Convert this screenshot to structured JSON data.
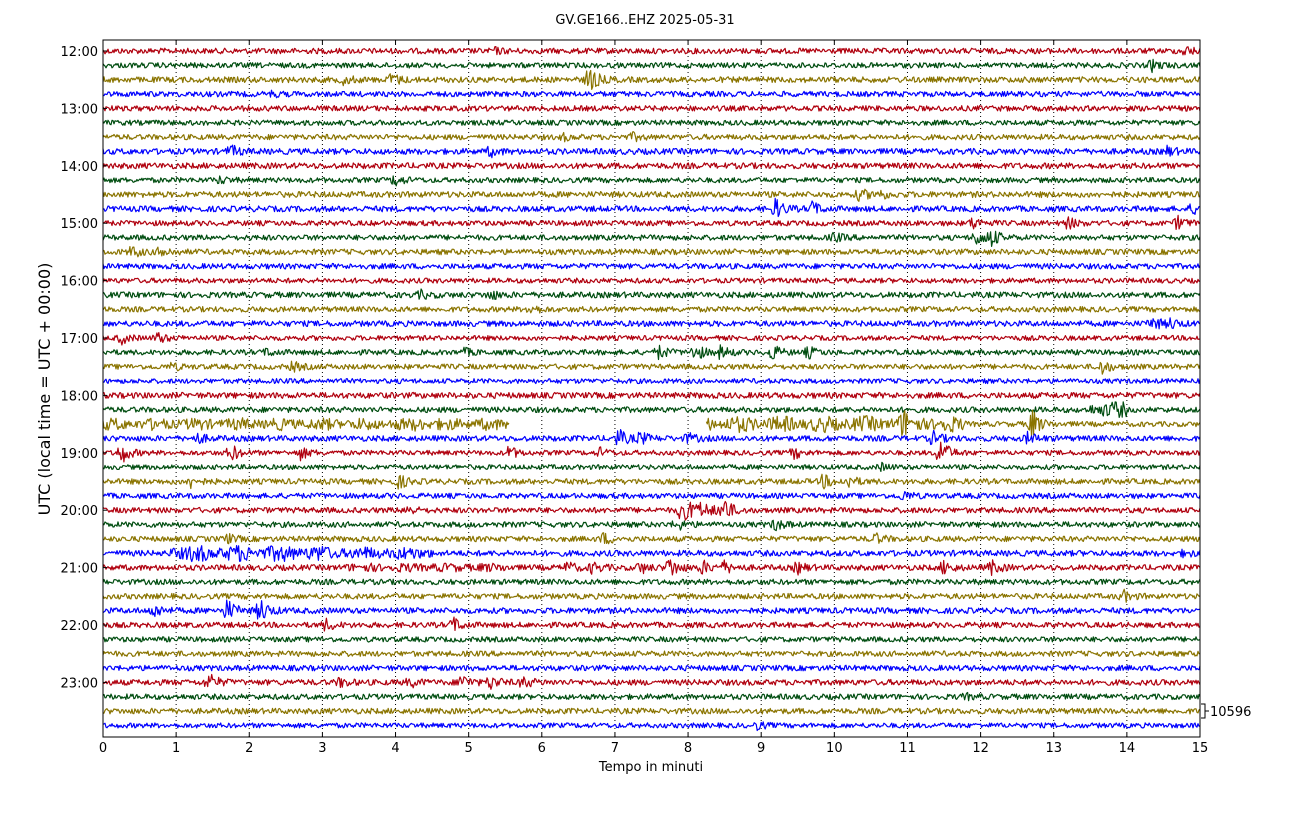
{
  "chart_data": {
    "type": "line",
    "title": "GV.GE166..EHZ 2025-05-31",
    "xlabel": "Tempo in minuti",
    "ylabel": "UTC (local time = UTC + 00:00)",
    "xlim": [
      0,
      15
    ],
    "x_ticks": [
      "0",
      "1",
      "2",
      "3",
      "4",
      "5",
      "6",
      "7",
      "8",
      "9",
      "10",
      "11",
      "12",
      "13",
      "14",
      "15"
    ],
    "y_ticks": [
      "12:00",
      "13:00",
      "14:00",
      "15:00",
      "16:00",
      "17:00",
      "18:00",
      "19:00",
      "20:00",
      "21:00",
      "22:00",
      "23:00"
    ],
    "row_start": "12:00",
    "row_minutes": 15,
    "row_count": 48,
    "grid": "vertical dotted",
    "scale_label": "10596",
    "colors": [
      "#b0000e",
      "#004d10",
      "#8a7400",
      "#0000ff"
    ],
    "events": [
      {
        "row": 0,
        "x": 5.35,
        "amp": 2.5
      },
      {
        "row": 0,
        "x": 14.8,
        "amp": 4
      },
      {
        "row": 1,
        "x": 14.35,
        "amp": 5
      },
      {
        "row": 2,
        "x": 3.3,
        "amp": 4
      },
      {
        "row": 2,
        "x": 3.95,
        "amp": 6
      },
      {
        "row": 2,
        "x": 6.65,
        "amp": 12
      },
      {
        "row": 3,
        "x": 2.3,
        "amp": 2
      },
      {
        "row": 6,
        "x": 6.3,
        "amp": 2.5
      },
      {
        "row": 6,
        "x": 7.25,
        "amp": 3
      },
      {
        "row": 7,
        "x": 1.75,
        "amp": 5
      },
      {
        "row": 7,
        "x": 5.3,
        "amp": 4
      },
      {
        "row": 7,
        "x": 14.55,
        "amp": 4
      },
      {
        "row": 9,
        "x": 1.6,
        "amp": 3
      },
      {
        "row": 9,
        "x": 4.0,
        "amp": 5
      },
      {
        "row": 10,
        "x": 10.35,
        "amp": 5
      },
      {
        "row": 10,
        "x": 10.6,
        "amp": 4
      },
      {
        "row": 11,
        "x": 9.2,
        "amp": 9
      },
      {
        "row": 11,
        "x": 9.7,
        "amp": 6
      },
      {
        "row": 11,
        "x": 14.9,
        "amp": 4
      },
      {
        "row": 12,
        "x": 11.9,
        "amp": 5
      },
      {
        "row": 12,
        "x": 13.2,
        "amp": 5
      },
      {
        "row": 12,
        "x": 14.7,
        "amp": 6
      },
      {
        "row": 13,
        "x": 10.0,
        "amp": 4
      },
      {
        "row": 13,
        "x": 11.95,
        "amp": 7
      },
      {
        "row": 13,
        "x": 12.15,
        "amp": 7
      },
      {
        "row": 14,
        "x": 0.4,
        "amp": 5
      },
      {
        "row": 14,
        "x": 0.8,
        "amp": 5
      },
      {
        "row": 17,
        "x": 4.35,
        "amp": 3
      },
      {
        "row": 17,
        "x": 5.3,
        "amp": 4
      },
      {
        "row": 18,
        "x": 5.85,
        "amp": 4
      },
      {
        "row": 19,
        "x": 14.35,
        "amp": 6
      },
      {
        "row": 19,
        "x": 14.6,
        "amp": 4
      },
      {
        "row": 20,
        "x": 0.25,
        "amp": 5
      },
      {
        "row": 20,
        "x": 0.75,
        "amp": 5
      },
      {
        "row": 21,
        "x": 2.25,
        "amp": 3
      },
      {
        "row": 21,
        "x": 4.95,
        "amp": 3
      },
      {
        "row": 21,
        "x": 7.6,
        "amp": 6
      },
      {
        "row": 21,
        "x": 8.1,
        "amp": 8
      },
      {
        "row": 21,
        "x": 8.45,
        "amp": 6
      },
      {
        "row": 21,
        "x": 9.15,
        "amp": 7
      },
      {
        "row": 21,
        "x": 9.65,
        "amp": 5
      },
      {
        "row": 22,
        "x": 0.95,
        "amp": 3
      },
      {
        "row": 22,
        "x": 2.6,
        "amp": 4
      },
      {
        "row": 22,
        "x": 13.65,
        "amp": 7
      },
      {
        "row": 26,
        "x": 4.3,
        "amp": 3
      },
      {
        "row": 26,
        "x": 10.95,
        "amp": 8
      },
      {
        "row": 26,
        "x": 12.7,
        "amp": 14
      },
      {
        "row": 27,
        "x": 1.3,
        "amp": 4
      },
      {
        "row": 27,
        "x": 7.05,
        "amp": 8
      },
      {
        "row": 27,
        "x": 7.35,
        "amp": 5
      },
      {
        "row": 27,
        "x": 8.0,
        "amp": 4
      },
      {
        "row": 27,
        "x": 11.35,
        "amp": 6
      },
      {
        "row": 27,
        "x": 12.65,
        "amp": 5
      },
      {
        "row": 28,
        "x": 0.25,
        "amp": 10
      },
      {
        "row": 28,
        "x": 1.75,
        "amp": 8
      },
      {
        "row": 28,
        "x": 2.7,
        "amp": 6
      },
      {
        "row": 28,
        "x": 5.55,
        "amp": 6
      },
      {
        "row": 28,
        "x": 6.8,
        "amp": 4
      },
      {
        "row": 28,
        "x": 9.45,
        "amp": 5
      },
      {
        "row": 28,
        "x": 11.45,
        "amp": 14
      },
      {
        "row": 29,
        "x": 10.65,
        "amp": 3
      },
      {
        "row": 30,
        "x": 1.2,
        "amp": 5
      },
      {
        "row": 30,
        "x": 4.05,
        "amp": 6
      },
      {
        "row": 30,
        "x": 9.85,
        "amp": 6
      },
      {
        "row": 30,
        "x": 10.2,
        "amp": 5
      },
      {
        "row": 31,
        "x": 10.95,
        "amp": 4
      },
      {
        "row": 32,
        "x": 4.15,
        "amp": 4
      },
      {
        "row": 32,
        "x": 7.9,
        "amp": 8
      },
      {
        "row": 32,
        "x": 8.5,
        "amp": 10
      },
      {
        "row": 33,
        "x": 7.85,
        "amp": 5
      },
      {
        "row": 33,
        "x": 9.2,
        "amp": 5
      },
      {
        "row": 34,
        "x": 1.7,
        "amp": 4
      },
      {
        "row": 34,
        "x": 6.85,
        "amp": 5
      },
      {
        "row": 34,
        "x": 10.55,
        "amp": 5
      },
      {
        "row": 35,
        "x": 14.8,
        "amp": 3
      },
      {
        "row": 36,
        "x": 6.35,
        "amp": 5
      },
      {
        "row": 36,
        "x": 6.7,
        "amp": 5
      },
      {
        "row": 36,
        "x": 7.35,
        "amp": 5
      },
      {
        "row": 36,
        "x": 7.75,
        "amp": 10
      },
      {
        "row": 36,
        "x": 8.2,
        "amp": 6
      },
      {
        "row": 36,
        "x": 8.5,
        "amp": 5
      },
      {
        "row": 36,
        "x": 9.5,
        "amp": 5
      },
      {
        "row": 36,
        "x": 11.5,
        "amp": 6
      },
      {
        "row": 36,
        "x": 12.15,
        "amp": 6
      },
      {
        "row": 38,
        "x": 13.95,
        "amp": 5
      },
      {
        "row": 39,
        "x": 0.7,
        "amp": 6
      },
      {
        "row": 39,
        "x": 1.7,
        "amp": 10
      },
      {
        "row": 39,
        "x": 2.15,
        "amp": 11
      },
      {
        "row": 40,
        "x": 3.05,
        "amp": 5
      },
      {
        "row": 40,
        "x": 4.8,
        "amp": 6
      },
      {
        "row": 44,
        "x": 1.45,
        "amp": 8
      },
      {
        "row": 44,
        "x": 3.25,
        "amp": 4
      },
      {
        "row": 44,
        "x": 4.2,
        "amp": 4
      },
      {
        "row": 44,
        "x": 4.9,
        "amp": 7
      },
      {
        "row": 44,
        "x": 5.3,
        "amp": 6
      },
      {
        "row": 44,
        "x": 5.75,
        "amp": 5
      },
      {
        "row": 45,
        "x": 11.8,
        "amp": 2
      },
      {
        "row": 47,
        "x": 8.95,
        "amp": 3
      }
    ],
    "segments": [
      {
        "row": 26,
        "x0": 0.0,
        "x1": 5.55,
        "amp": 4
      },
      {
        "row": 26,
        "x0": 8.25,
        "x1": 11.8,
        "amp": 6
      },
      {
        "row": 25,
        "x0": 13.45,
        "x1": 14.0,
        "amp": 6
      },
      {
        "row": 32,
        "x0": 7.9,
        "x1": 8.55,
        "amp": 5
      },
      {
        "row": 35,
        "x0": 0.9,
        "x1": 3.0,
        "amp": 6
      },
      {
        "row": 35,
        "x0": 3.0,
        "x1": 4.5,
        "amp": 4
      },
      {
        "row": 36,
        "x0": 3.3,
        "x1": 5.6,
        "amp": 2
      }
    ],
    "gaps": [
      {
        "row": 26,
        "x0": 5.55,
        "x1": 8.25
      }
    ]
  }
}
